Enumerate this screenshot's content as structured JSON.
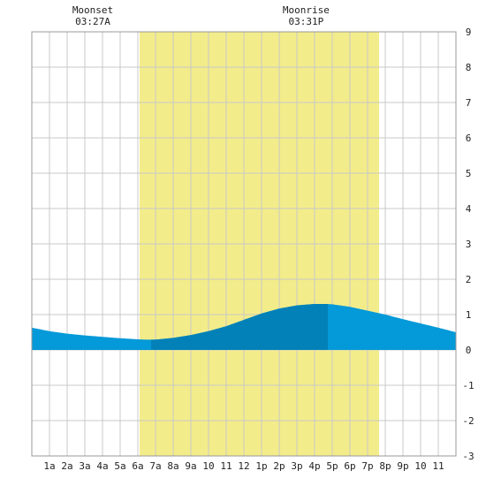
{
  "chart_data": {
    "type": "area",
    "title": "",
    "xlabel": "",
    "ylabel": "",
    "x_range_hours": [
      0,
      24
    ],
    "ylim": [
      -3,
      9
    ],
    "y_ticks": [
      -3,
      -2,
      -1,
      0,
      1,
      2,
      3,
      4,
      5,
      6,
      7,
      8,
      9
    ],
    "x_tick_labels": [
      "1a",
      "2a",
      "3a",
      "4a",
      "5a",
      "6a",
      "7a",
      "8a",
      "9a",
      "10",
      "11",
      "12",
      "1p",
      "2p",
      "3p",
      "4p",
      "5p",
      "6p",
      "7p",
      "8p",
      "9p",
      "10",
      "11"
    ],
    "grid": true,
    "daylight": {
      "start_hour": 6.1,
      "end_hour": 19.65,
      "color": "#f3ec8a"
    },
    "tide_series": {
      "x": [
        0,
        1,
        2,
        3,
        4,
        5,
        6,
        6.5,
        7,
        8,
        9,
        10,
        11,
        12,
        13,
        14,
        15,
        16,
        16.75,
        17,
        18,
        19,
        20,
        21,
        22,
        23,
        24
      ],
      "y": [
        0.63,
        0.53,
        0.46,
        0.41,
        0.37,
        0.33,
        0.3,
        0.29,
        0.29,
        0.34,
        0.42,
        0.53,
        0.67,
        0.85,
        1.03,
        1.17,
        1.26,
        1.3,
        1.3,
        1.29,
        1.22,
        1.11,
        1.0,
        0.87,
        0.75,
        0.63,
        0.5
      ]
    },
    "tide_color_light": "#0499d8",
    "tide_color_dark": "#0281b8",
    "tide_dark_range_hours": [
      6.75,
      16.75
    ],
    "annotations": [
      {
        "label": "Moonset",
        "time": "03:27A",
        "hour": 3.45
      },
      {
        "label": "Moonrise",
        "time": "03:31P",
        "hour": 15.52
      }
    ]
  }
}
